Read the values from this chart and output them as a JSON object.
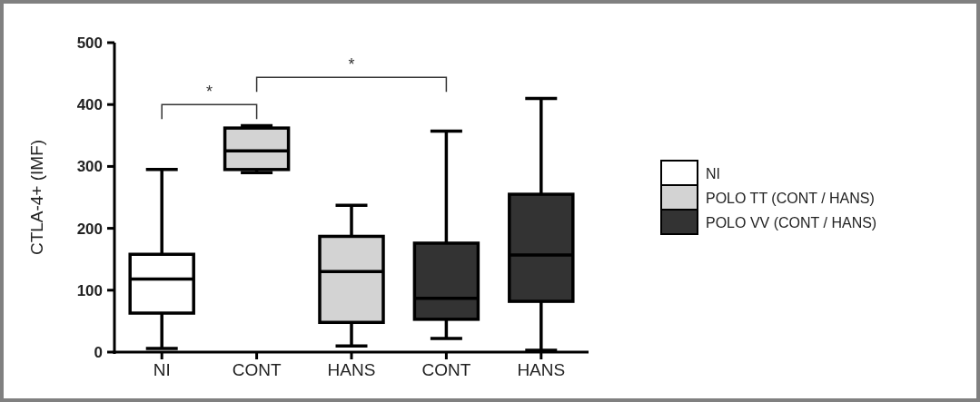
{
  "chart_data": {
    "type": "box",
    "ylabel": "CTLA-4+ (IMF)",
    "categories": [
      "NI",
      "CONT",
      "HANS",
      "CONT",
      "HANS"
    ],
    "ylim": [
      0,
      500
    ],
    "yticks": [
      0,
      100,
      200,
      300,
      400,
      500
    ],
    "grid": false,
    "legend": "right",
    "annotations": [
      "*",
      "*"
    ],
    "series": [
      {
        "name": "NI",
        "color": "#ffffff",
        "boxes": [
          {
            "low": 6,
            "q1": 63,
            "median": 118,
            "q3": 158,
            "high": 295
          },
          null,
          null,
          null,
          null
        ]
      },
      {
        "name": "POLO TT (CONT / HANS)",
        "color": "#d3d3d3",
        "boxes": [
          null,
          {
            "low": 290,
            "q1": 295,
            "median": 325,
            "q3": 362,
            "high": 366
          },
          {
            "low": 10,
            "q1": 48,
            "median": 130,
            "q3": 187,
            "high": 237
          },
          null,
          null
        ]
      },
      {
        "name": "POLO VV (CONT / HANS)",
        "color": "#333333",
        "boxes": [
          null,
          null,
          null,
          {
            "low": 22,
            "q1": 53,
            "median": 87,
            "q3": 176,
            "high": 357
          },
          {
            "low": 3,
            "q1": 82,
            "median": 157,
            "q3": 255,
            "high": 410
          }
        ]
      }
    ]
  }
}
